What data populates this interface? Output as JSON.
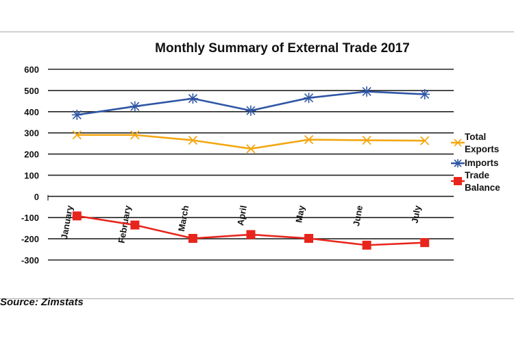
{
  "chart_data": {
    "type": "line",
    "title": "Monthly Summary of External Trade 2017",
    "categories": [
      "January",
      "February",
      "March",
      "April",
      "May",
      "June",
      "July"
    ],
    "series": [
      {
        "name": "Total Exports",
        "color": "#f3a712",
        "marker": "x",
        "values": [
          290,
          290,
          265,
          225,
          268,
          265,
          263
        ]
      },
      {
        "name": "Imports",
        "color": "#2f55a4",
        "marker": "asterisk",
        "values": [
          385,
          425,
          462,
          405,
          465,
          495,
          482
        ]
      },
      {
        "name": "Trade Balance",
        "color": "#e8251c",
        "marker": "square",
        "values": [
          -92,
          -135,
          -198,
          -180,
          -198,
          -230,
          -218
        ]
      }
    ],
    "ylim": [
      -300,
      600
    ],
    "yticks": [
      600,
      500,
      400,
      300,
      200,
      100,
      0,
      -100,
      -200,
      -300
    ],
    "grid": true,
    "legend_position": "right"
  },
  "source": "Source: Zimstats"
}
